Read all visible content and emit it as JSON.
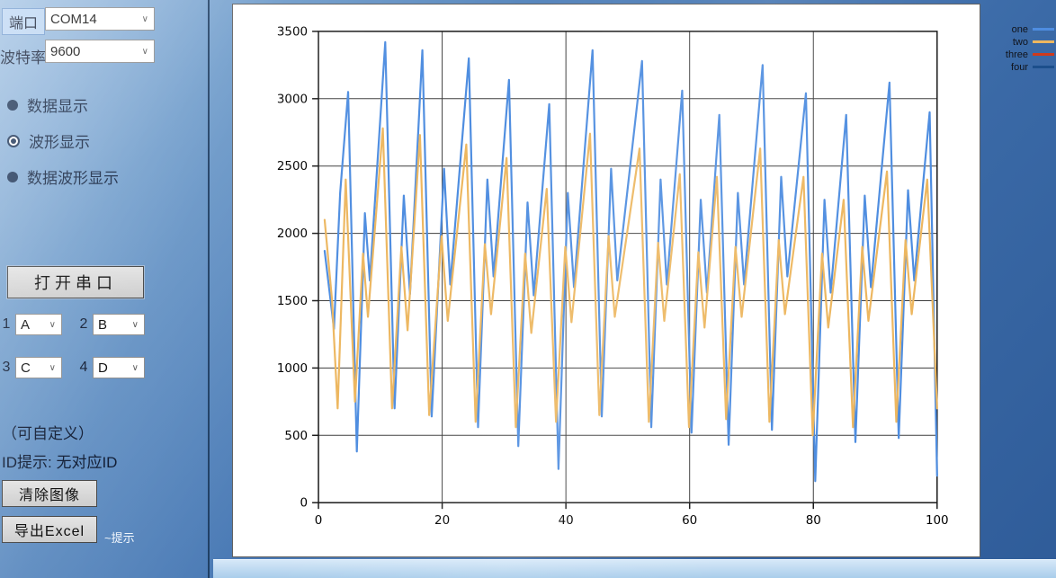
{
  "icons": {
    "dropdown_arrow": "∨"
  },
  "sidebar": {
    "port_label": "端口",
    "port_value": "COM14",
    "baud_label": "波特率",
    "baud_value": "9600",
    "radios": [
      {
        "label": "数据显示",
        "selected": false
      },
      {
        "label": "波形显示",
        "selected": true
      },
      {
        "label": "数据波形显示",
        "selected": false
      }
    ],
    "open_button": "打开串口",
    "channels": [
      {
        "num": "1",
        "value": "A"
      },
      {
        "num": "2",
        "value": "B"
      },
      {
        "num": "3",
        "value": "C"
      },
      {
        "num": "4",
        "value": "D"
      }
    ],
    "customizable_note": "（可自定义）",
    "id_hint": "ID提示: 无对应ID",
    "clear_button": "清除图像",
    "export_button": "导出Excel",
    "tip_label": "~提示"
  },
  "chart_data": {
    "type": "line",
    "title": "",
    "xlabel": "",
    "ylabel": "",
    "xlim": [
      0,
      100
    ],
    "ylim": [
      0,
      3500
    ],
    "xticks": [
      0,
      20,
      40,
      60,
      80,
      100
    ],
    "yticks": [
      0,
      500,
      1000,
      1500,
      2000,
      2500,
      3000,
      3500
    ],
    "grid": true,
    "legend_position": "top-right-outside",
    "series": [
      {
        "name": "one",
        "color": "#4e8de0",
        "points": [
          [
            1,
            1870
          ],
          [
            2.5,
            1290
          ],
          [
            3.5,
            2300
          ],
          [
            4.8,
            3050
          ],
          [
            6.2,
            380
          ],
          [
            7.5,
            2150
          ],
          [
            8.3,
            1650
          ],
          [
            10.8,
            3420
          ],
          [
            12.3,
            700
          ],
          [
            13.8,
            2280
          ],
          [
            14.8,
            1550
          ],
          [
            16.8,
            3360
          ],
          [
            18.3,
            640
          ],
          [
            20.3,
            2480
          ],
          [
            21.3,
            1620
          ],
          [
            24.3,
            3300
          ],
          [
            25.8,
            560
          ],
          [
            27.3,
            2400
          ],
          [
            28.3,
            1680
          ],
          [
            30.8,
            3140
          ],
          [
            32.3,
            420
          ],
          [
            33.8,
            2230
          ],
          [
            34.8,
            1540
          ],
          [
            37.3,
            2960
          ],
          [
            38.8,
            250
          ],
          [
            40.3,
            2300
          ],
          [
            41.3,
            1600
          ],
          [
            44.3,
            3360
          ],
          [
            45.8,
            640
          ],
          [
            47.3,
            2480
          ],
          [
            48.3,
            1650
          ],
          [
            52.3,
            3280
          ],
          [
            53.8,
            560
          ],
          [
            55.3,
            2400
          ],
          [
            56.3,
            1620
          ],
          [
            58.8,
            3060
          ],
          [
            60.3,
            520
          ],
          [
            61.8,
            2250
          ],
          [
            62.8,
            1560
          ],
          [
            64.8,
            2880
          ],
          [
            66.3,
            430
          ],
          [
            67.8,
            2300
          ],
          [
            68.8,
            1620
          ],
          [
            71.8,
            3250
          ],
          [
            73.3,
            540
          ],
          [
            74.8,
            2420
          ],
          [
            75.8,
            1680
          ],
          [
            78.8,
            3040
          ],
          [
            80.3,
            160
          ],
          [
            81.8,
            2250
          ],
          [
            82.8,
            1560
          ],
          [
            85.3,
            2880
          ],
          [
            86.8,
            450
          ],
          [
            88.3,
            2280
          ],
          [
            89.3,
            1600
          ],
          [
            92.3,
            3120
          ],
          [
            93.8,
            480
          ],
          [
            95.3,
            2320
          ],
          [
            96.3,
            1650
          ],
          [
            98.8,
            2900
          ],
          [
            100,
            200
          ]
        ]
      },
      {
        "name": "two",
        "color": "#edb760",
        "points": [
          [
            1,
            2100
          ],
          [
            2.2,
            1500
          ],
          [
            3.1,
            700
          ],
          [
            4.4,
            2400
          ],
          [
            5.9,
            750
          ],
          [
            7.2,
            1850
          ],
          [
            8,
            1380
          ],
          [
            10.4,
            2780
          ],
          [
            11.9,
            700
          ],
          [
            13.4,
            1900
          ],
          [
            14.4,
            1280
          ],
          [
            16.4,
            2730
          ],
          [
            17.9,
            650
          ],
          [
            19.9,
            1980
          ],
          [
            20.9,
            1350
          ],
          [
            23.9,
            2660
          ],
          [
            25.4,
            600
          ],
          [
            26.9,
            1920
          ],
          [
            27.9,
            1400
          ],
          [
            30.4,
            2560
          ],
          [
            31.9,
            560
          ],
          [
            33.4,
            1850
          ],
          [
            34.4,
            1260
          ],
          [
            36.9,
            2330
          ],
          [
            38.4,
            600
          ],
          [
            39.9,
            1900
          ],
          [
            40.9,
            1340
          ],
          [
            43.9,
            2740
          ],
          [
            45.4,
            650
          ],
          [
            46.9,
            1980
          ],
          [
            47.9,
            1380
          ],
          [
            51.9,
            2630
          ],
          [
            53.4,
            600
          ],
          [
            54.9,
            1930
          ],
          [
            55.9,
            1350
          ],
          [
            58.4,
            2440
          ],
          [
            59.9,
            560
          ],
          [
            61.4,
            1860
          ],
          [
            62.4,
            1300
          ],
          [
            64.4,
            2420
          ],
          [
            65.9,
            620
          ],
          [
            67.4,
            1900
          ],
          [
            68.4,
            1380
          ],
          [
            71.4,
            2630
          ],
          [
            72.9,
            600
          ],
          [
            74.4,
            1950
          ],
          [
            75.4,
            1400
          ],
          [
            78.4,
            2420
          ],
          [
            79.9,
            500
          ],
          [
            81.4,
            1850
          ],
          [
            82.4,
            1300
          ],
          [
            84.9,
            2250
          ],
          [
            86.4,
            560
          ],
          [
            87.9,
            1900
          ],
          [
            88.9,
            1350
          ],
          [
            91.9,
            2460
          ],
          [
            93.4,
            600
          ],
          [
            94.9,
            1950
          ],
          [
            95.9,
            1400
          ],
          [
            98.4,
            2400
          ],
          [
            100,
            700
          ]
        ]
      },
      {
        "name": "three",
        "color": "#cf3a1c",
        "points": []
      },
      {
        "name": "four",
        "color": "#1c4f8c",
        "points": []
      }
    ]
  }
}
